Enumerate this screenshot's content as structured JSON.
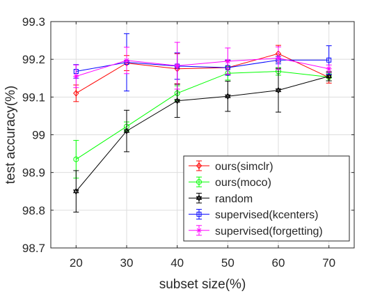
{
  "chart_data": {
    "type": "line",
    "xlabel": "subset size(%)",
    "ylabel": "test accuracy(%)",
    "x": [
      20,
      30,
      40,
      50,
      60,
      70
    ],
    "xlim": [
      15,
      75
    ],
    "ylim": [
      98.7,
      99.3
    ],
    "xticks": [
      "20",
      "30",
      "40",
      "50",
      "60",
      "70"
    ],
    "yticks": [
      "98.7",
      "98.8",
      "98.9",
      "99",
      "99.1",
      "99.2",
      "99.3"
    ],
    "grid": true,
    "legend_position": "bottom-right",
    "series": [
      {
        "name": "ours(simclr)",
        "color": "#ff0000",
        "marker": "diamond",
        "values": [
          99.11,
          99.19,
          99.175,
          99.178,
          99.215,
          99.152
        ],
        "errors": [
          0.022,
          0.02,
          0.04,
          0.018,
          0.022,
          0.015
        ]
      },
      {
        "name": "ours(moco)",
        "color": "#00ff00",
        "marker": "circle",
        "values": [
          98.935,
          99.022,
          99.11,
          99.163,
          99.168,
          99.153
        ],
        "errors": [
          0.05,
          0.012,
          0.02,
          0.018,
          0.01,
          0.01
        ]
      },
      {
        "name": "random",
        "color": "#000000",
        "marker": "hexagram",
        "values": [
          98.85,
          99.01,
          99.09,
          99.102,
          99.118,
          99.155
        ],
        "errors": [
          0.055,
          0.055,
          0.044,
          0.04,
          0.058,
          0.012
        ]
      },
      {
        "name": "supervised(kcenters)",
        "color": "#0000ff",
        "marker": "square",
        "values": [
          99.168,
          99.192,
          99.182,
          99.178,
          99.198,
          99.198
        ],
        "errors": [
          0.018,
          0.076,
          0.035,
          0.02,
          0.01,
          0.038
        ]
      },
      {
        "name": "supervised(forgetting)",
        "color": "#ff00ff",
        "marker": "asterisk",
        "values": [
          99.155,
          99.197,
          99.183,
          99.195,
          99.203,
          99.175
        ],
        "errors": [
          0.03,
          0.035,
          0.062,
          0.035,
          0.03,
          0.01
        ]
      }
    ]
  }
}
